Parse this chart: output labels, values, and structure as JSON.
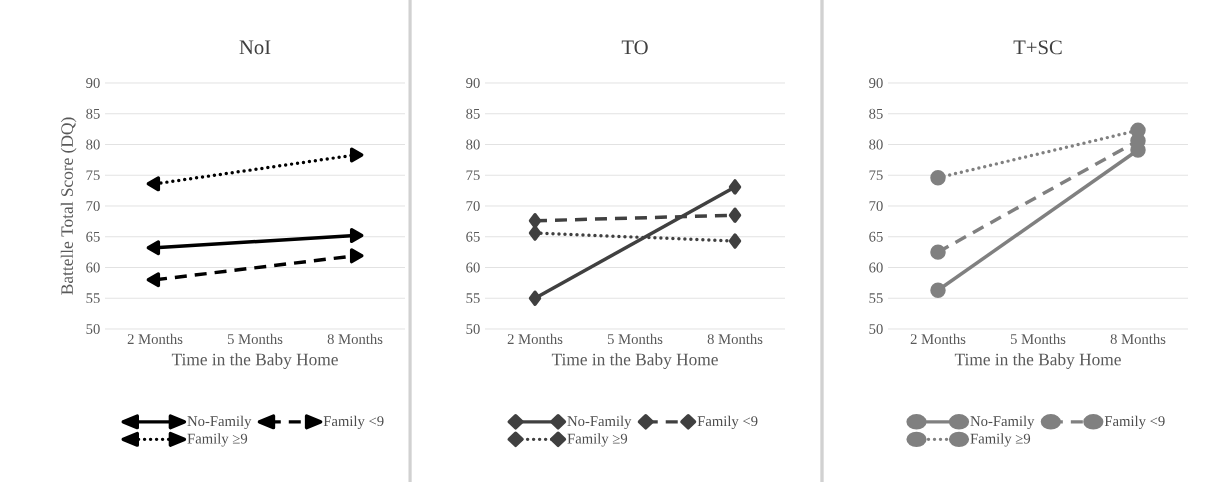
{
  "chart_data": [
    {
      "type": "line",
      "title": "NoI",
      "xlabel": "Time in the Baby Home",
      "ylabel": "Battelle Total Score (DQ)",
      "categories": [
        "2 Months",
        "5 Months",
        "8 Months"
      ],
      "ylim": [
        50,
        90
      ],
      "yticks": [
        50,
        55,
        60,
        65,
        70,
        75,
        80,
        85,
        90
      ],
      "grid": "y",
      "legend": "bottom",
      "marker": "triangle",
      "series": [
        {
          "name": "No-Family",
          "color": "#000000",
          "line_style": "solid",
          "values": [
            63.2,
            null,
            65.2
          ]
        },
        {
          "name": "Family <9",
          "color": "#000000",
          "line_style": "dashed",
          "values": [
            58.0,
            null,
            61.9
          ]
        },
        {
          "name": "Family ≥9",
          "color": "#000000",
          "line_style": "dotted",
          "values": [
            73.6,
            null,
            78.3
          ]
        }
      ]
    },
    {
      "type": "line",
      "title": "TO",
      "xlabel": "Time in the Baby Home",
      "categories": [
        "2 Months",
        "5 Months",
        "8 Months"
      ],
      "ylim": [
        50,
        90
      ],
      "yticks": [
        50,
        55,
        60,
        65,
        70,
        75,
        80,
        85,
        90
      ],
      "grid": "y",
      "legend": "bottom",
      "marker": "diamond",
      "series": [
        {
          "name": "No-Family",
          "color": "#404040",
          "line_style": "solid",
          "values": [
            55.0,
            null,
            73.1
          ]
        },
        {
          "name": "Family <9",
          "color": "#404040",
          "line_style": "dashed",
          "values": [
            67.6,
            null,
            68.5
          ]
        },
        {
          "name": "Family ≥9",
          "color": "#404040",
          "line_style": "dotted",
          "values": [
            65.6,
            null,
            64.3
          ]
        }
      ]
    },
    {
      "type": "line",
      "title": "T+SC",
      "xlabel": "Time in the Baby Home",
      "categories": [
        "2 Months",
        "5 Months",
        "8 Months"
      ],
      "ylim": [
        50,
        90
      ],
      "yticks": [
        50,
        55,
        60,
        65,
        70,
        75,
        80,
        85,
        90
      ],
      "grid": "y",
      "legend": "bottom",
      "marker": "circle",
      "series": [
        {
          "name": "No-Family",
          "color": "#808080",
          "line_style": "solid",
          "values": [
            56.3,
            null,
            79.1
          ]
        },
        {
          "name": "Family <9",
          "color": "#808080",
          "line_style": "dashed",
          "values": [
            62.5,
            null,
            80.6
          ]
        },
        {
          "name": "Family ≥9",
          "color": "#808080",
          "line_style": "dotted",
          "values": [
            74.6,
            null,
            82.3
          ]
        }
      ]
    }
  ]
}
